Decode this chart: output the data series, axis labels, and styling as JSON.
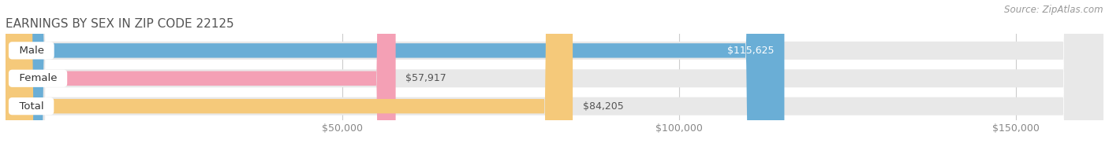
{
  "title": "EARNINGS BY SEX IN ZIP CODE 22125",
  "source": "Source: ZipAtlas.com",
  "categories": [
    "Male",
    "Female",
    "Total"
  ],
  "values": [
    115625,
    57917,
    84205
  ],
  "bar_colors": [
    "#6aaed6",
    "#f4a0b5",
    "#f5c97a"
  ],
  "label_values": [
    "$115,625",
    "$57,917",
    "$84,205"
  ],
  "label_inside": [
    true,
    false,
    false
  ],
  "bg_bar_color": "#e8e8e8",
  "fig_bg_color": "#ffffff",
  "title_color": "#555555",
  "title_fontsize": 11,
  "source_fontsize": 8.5,
  "tick_fontsize": 9,
  "label_fontsize": 9,
  "category_fontsize": 9.5,
  "xmin": 0,
  "xmax": 163000,
  "xticks": [
    50000,
    100000,
    150000
  ],
  "xtick_labels": [
    "$50,000",
    "$100,000",
    "$150,000"
  ],
  "figsize": [
    14.06,
    1.96
  ],
  "dpi": 100
}
